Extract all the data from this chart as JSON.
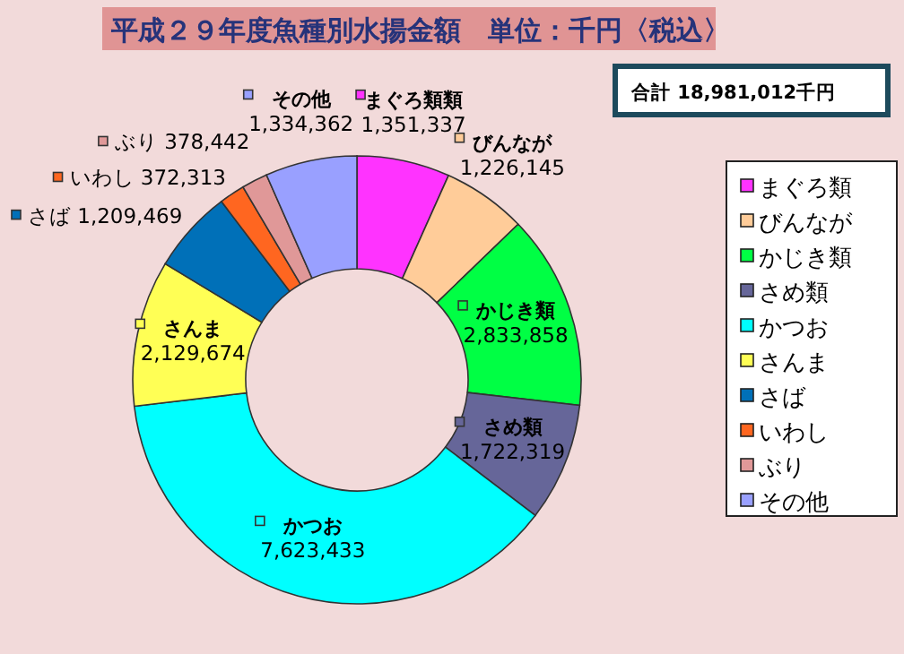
{
  "chart_data": {
    "type": "donut",
    "title": "平成２９年度魚種別水揚金額　単位：千円〈税込〉",
    "categories": [
      "まぐろ類",
      "びんなが",
      "かじき類",
      "さめ類",
      "かつお",
      "さんま",
      "さば",
      "いわし",
      "ぶり",
      "その他"
    ],
    "values": [
      1351337,
      1226145,
      2833858,
      1722319,
      7623433,
      2129674,
      1209469,
      372313,
      378442,
      1334362
    ],
    "colors": [
      "#ff33ff",
      "#ffcc99",
      "#00ff44",
      "#666699",
      "#00ffff",
      "#ffff55",
      "#0070b8",
      "#ff6620",
      "#e09898",
      "#99a0ff"
    ],
    "value_labels": [
      "まぐろ類類 1,351,337",
      "びんなが 1,226,145",
      "かじき類 2,833,858",
      "さめ類 1,722,319",
      "かつお 7,623,433",
      "さんま 2,129,674",
      "さば 1,209,469",
      "いわし 372,313",
      "ぶり 378,442",
      "その他 1,334,362"
    ],
    "annotations": [
      "合計 18,981,012千円"
    ],
    "legend": "right"
  }
}
